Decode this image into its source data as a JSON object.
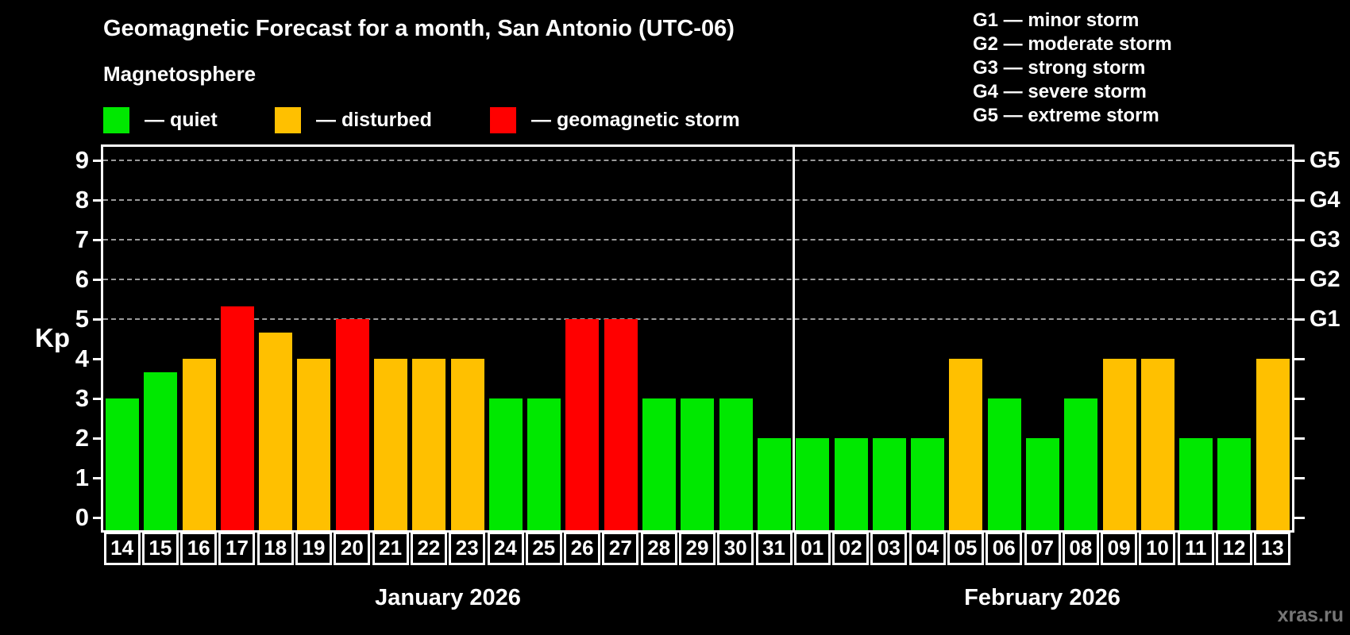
{
  "title": "Geomagnetic Forecast for a month, San Antonio (UTC-06)",
  "subtitle": "Magnetosphere",
  "legend": {
    "items": [
      {
        "name": "quiet",
        "color": "#00e800",
        "label": "— quiet"
      },
      {
        "name": "disturbed",
        "color": "#ffc000",
        "label": "— disturbed"
      },
      {
        "name": "storm",
        "color": "#ff0000",
        "label": "— geomagnetic storm"
      }
    ]
  },
  "g_scale_legend": [
    "G1 — minor storm",
    "G2 — moderate storm",
    "G3 — strong storm",
    "G4 — severe storm",
    "G5 — extreme storm"
  ],
  "watermark": "xras.ru",
  "chart_data": {
    "type": "bar",
    "ylabel": "Kp",
    "ylim": [
      0,
      9
    ],
    "yticks": [
      0,
      1,
      2,
      3,
      4,
      5,
      6,
      7,
      8,
      9
    ],
    "gridlines_at": [
      5,
      6,
      7,
      8,
      9
    ],
    "grid": "dashed horizontal lines only at G-storm levels (Kp 5-9)",
    "right_axis_labels": [
      {
        "kp": 5,
        "label": "G1"
      },
      {
        "kp": 6,
        "label": "G2"
      },
      {
        "kp": 7,
        "label": "G3"
      },
      {
        "kp": 8,
        "label": "G4"
      },
      {
        "kp": 9,
        "label": "G5"
      }
    ],
    "colors": {
      "quiet": "#00e800",
      "disturbed": "#ffc000",
      "storm": "#ff0000"
    },
    "months": [
      {
        "label": "January 2026",
        "days": [
          {
            "day": "14",
            "kp": 3,
            "status": "quiet"
          },
          {
            "day": "15",
            "kp": 3.67,
            "status": "quiet"
          },
          {
            "day": "16",
            "kp": 4,
            "status": "disturbed"
          },
          {
            "day": "17",
            "kp": 5.33,
            "status": "storm"
          },
          {
            "day": "18",
            "kp": 4.67,
            "status": "disturbed"
          },
          {
            "day": "19",
            "kp": 4,
            "status": "disturbed"
          },
          {
            "day": "20",
            "kp": 5,
            "status": "storm"
          },
          {
            "day": "21",
            "kp": 4,
            "status": "disturbed"
          },
          {
            "day": "22",
            "kp": 4,
            "status": "disturbed"
          },
          {
            "day": "23",
            "kp": 4,
            "status": "disturbed"
          },
          {
            "day": "24",
            "kp": 3,
            "status": "quiet"
          },
          {
            "day": "25",
            "kp": 3,
            "status": "quiet"
          },
          {
            "day": "26",
            "kp": 5,
            "status": "storm"
          },
          {
            "day": "27",
            "kp": 5,
            "status": "storm"
          },
          {
            "day": "28",
            "kp": 3,
            "status": "quiet"
          },
          {
            "day": "29",
            "kp": 3,
            "status": "quiet"
          },
          {
            "day": "30",
            "kp": 3,
            "status": "quiet"
          },
          {
            "day": "31",
            "kp": 2,
            "status": "quiet"
          }
        ]
      },
      {
        "label": "February 2026",
        "days": [
          {
            "day": "01",
            "kp": 2,
            "status": "quiet"
          },
          {
            "day": "02",
            "kp": 2,
            "status": "quiet"
          },
          {
            "day": "03",
            "kp": 2,
            "status": "quiet"
          },
          {
            "day": "04",
            "kp": 2,
            "status": "quiet"
          },
          {
            "day": "05",
            "kp": 4,
            "status": "disturbed"
          },
          {
            "day": "06",
            "kp": 3,
            "status": "quiet"
          },
          {
            "day": "07",
            "kp": 2,
            "status": "quiet"
          },
          {
            "day": "08",
            "kp": 3,
            "status": "quiet"
          },
          {
            "day": "09",
            "kp": 4,
            "status": "disturbed"
          },
          {
            "day": "10",
            "kp": 4,
            "status": "disturbed"
          },
          {
            "day": "11",
            "kp": 2,
            "status": "quiet"
          },
          {
            "day": "12",
            "kp": 2,
            "status": "quiet"
          },
          {
            "day": "13",
            "kp": 4,
            "status": "disturbed"
          }
        ]
      }
    ]
  }
}
